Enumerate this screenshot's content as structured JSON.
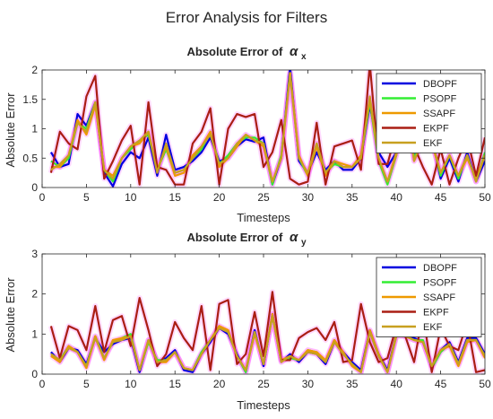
{
  "figure": {
    "suptitle": "Error Analysis for Filters"
  },
  "colors": {
    "DBOPF": "#0000e0",
    "PSOPF": "#33ee33",
    "SSAPF": "#ee9900",
    "EKPF": "#aa1e14",
    "EKF": "#c8a020",
    "highlight": "#ff33ff",
    "axis": "#262626"
  },
  "chart_data": [
    {
      "type": "line",
      "title": "Absolute Error of",
      "title_symbol": "α",
      "title_subscript": "x",
      "xlabel": "Timesteps",
      "ylabel": "Absolute Error",
      "xlim": [
        0,
        50
      ],
      "ylim": [
        0,
        2
      ],
      "xticks": [
        0,
        5,
        10,
        15,
        20,
        25,
        30,
        35,
        40,
        45,
        50
      ],
      "yticks": [
        0,
        0.5,
        1,
        1.5,
        2
      ],
      "ytick_labels": [
        "0",
        "0.5",
        "1",
        "1.5",
        "2"
      ],
      "xtick_labels": [
        "0",
        "5",
        "10",
        "15",
        "20",
        "25",
        "30",
        "35",
        "40",
        "45",
        "50"
      ],
      "grid": false,
      "legend": "top-right",
      "x": [
        1,
        2,
        3,
        4,
        5,
        6,
        7,
        8,
        9,
        10,
        11,
        12,
        13,
        14,
        15,
        16,
        17,
        18,
        19,
        20,
        21,
        22,
        23,
        24,
        25,
        26,
        27,
        28,
        29,
        30,
        31,
        32,
        33,
        34,
        35,
        36,
        37,
        38,
        39,
        40,
        41,
        42,
        43,
        44,
        45,
        46,
        47,
        48,
        49,
        50
      ],
      "series": [
        {
          "name": "DBOPF",
          "values": [
            0.6,
            0.35,
            0.4,
            1.25,
            1.05,
            1.45,
            0.25,
            0.02,
            0.4,
            0.6,
            0.5,
            0.85,
            0.2,
            0.9,
            0.3,
            0.35,
            0.45,
            0.6,
            0.85,
            0.45,
            0.5,
            0.7,
            0.82,
            0.78,
            0.85,
            0.05,
            0.5,
            2.05,
            0.45,
            0.25,
            0.6,
            0.3,
            0.45,
            0.3,
            0.3,
            0.5,
            1.4,
            0.6,
            0.35,
            0.6,
            1.6,
            0.5,
            0.9,
            0.85,
            0.15,
            0.5,
            0.1,
            0.6,
            0.1,
            0.45
          ]
        },
        {
          "name": "PSOPF",
          "values": [
            0.45,
            0.35,
            0.5,
            1.1,
            1.0,
            1.45,
            0.3,
            0.1,
            0.5,
            0.65,
            0.8,
            0.9,
            0.3,
            0.65,
            0.25,
            0.3,
            0.5,
            0.65,
            0.95,
            0.4,
            0.55,
            0.75,
            0.85,
            0.85,
            0.75,
            0.05,
            0.55,
            1.95,
            0.5,
            0.2,
            0.75,
            0.25,
            0.4,
            0.35,
            0.35,
            0.5,
            1.45,
            0.45,
            0.05,
            0.55,
            1.55,
            0.5,
            0.85,
            0.8,
            0.2,
            0.55,
            0.15,
            0.55,
            0.1,
            0.6
          ]
        },
        {
          "name": "SSAPF",
          "values": [
            0.35,
            0.35,
            0.55,
            1.15,
            0.9,
            1.4,
            0.3,
            0.2,
            0.5,
            0.7,
            0.75,
            0.95,
            0.3,
            0.7,
            0.2,
            0.25,
            0.55,
            0.7,
            0.95,
            0.35,
            0.5,
            0.7,
            0.9,
            0.8,
            0.7,
            0.1,
            0.5,
            1.95,
            0.55,
            0.2,
            0.7,
            0.2,
            0.45,
            0.4,
            0.35,
            0.55,
            1.5,
            0.5,
            0.1,
            0.6,
            1.5,
            0.45,
            0.8,
            0.75,
            0.25,
            0.55,
            0.2,
            0.5,
            0.15,
            0.55
          ]
        },
        {
          "name": "EKPF",
          "values": [
            0.25,
            0.95,
            0.75,
            0.65,
            1.55,
            1.9,
            0.15,
            0.45,
            0.8,
            1.05,
            0.05,
            1.45,
            0.35,
            0.3,
            0.05,
            0.05,
            0.75,
            0.95,
            1.35,
            0.05,
            1.0,
            1.25,
            1.2,
            1.25,
            0.35,
            0.6,
            1.15,
            0.15,
            0.05,
            0.1,
            1.1,
            0.05,
            0.7,
            0.75,
            0.8,
            0.3,
            2.1,
            0.4,
            0.4,
            0.95,
            0.95,
            0.7,
            0.35,
            0.05,
            0.65,
            0.05,
            0.5,
            0.85,
            0.2,
            0.85
          ]
        },
        {
          "name": "EKF",
          "values": [
            0.3,
            0.4,
            0.55,
            1.1,
            0.95,
            1.45,
            0.3,
            0.15,
            0.5,
            0.7,
            0.8,
            0.95,
            0.25,
            0.75,
            0.25,
            0.3,
            0.5,
            0.7,
            0.9,
            0.4,
            0.5,
            0.75,
            0.9,
            0.8,
            0.75,
            0.1,
            0.5,
            1.9,
            0.5,
            0.25,
            0.75,
            0.25,
            0.45,
            0.35,
            0.35,
            0.5,
            1.55,
            0.5,
            0.1,
            0.55,
            1.5,
            0.45,
            0.85,
            0.8,
            0.25,
            0.55,
            0.2,
            0.55,
            0.1,
            0.55
          ]
        }
      ]
    },
    {
      "type": "line",
      "title": "Absolute Error of",
      "title_symbol": "α",
      "title_subscript": "y",
      "xlabel": "Timesteps",
      "ylabel": "Absolute Error",
      "xlim": [
        0,
        50
      ],
      "ylim": [
        0,
        3
      ],
      "xticks": [
        0,
        5,
        10,
        15,
        20,
        25,
        30,
        35,
        40,
        45,
        50
      ],
      "yticks": [
        0,
        1,
        2,
        3
      ],
      "ytick_labels": [
        "0",
        "1",
        "2",
        "3"
      ],
      "xtick_labels": [
        "0",
        "5",
        "10",
        "15",
        "20",
        "25",
        "30",
        "35",
        "40",
        "45",
        "50"
      ],
      "grid": false,
      "legend": "top-right",
      "x": [
        1,
        2,
        3,
        4,
        5,
        6,
        7,
        8,
        9,
        10,
        11,
        12,
        13,
        14,
        15,
        16,
        17,
        18,
        19,
        20,
        21,
        22,
        23,
        24,
        25,
        26,
        27,
        28,
        29,
        30,
        31,
        32,
        33,
        34,
        35,
        36,
        37,
        38,
        39,
        40,
        41,
        42,
        43,
        44,
        45,
        46,
        47,
        48,
        49,
        50
      ],
      "series": [
        {
          "name": "DBOPF",
          "values": [
            0.55,
            0.3,
            0.65,
            0.6,
            0.25,
            0.9,
            0.55,
            0.75,
            0.85,
            0.9,
            0.05,
            0.85,
            0.3,
            0.4,
            0.6,
            0.1,
            0.05,
            0.5,
            0.8,
            1.15,
            1.0,
            0.5,
            0.05,
            1.1,
            0.2,
            1.5,
            0.3,
            0.5,
            0.3,
            0.55,
            0.5,
            0.25,
            0.8,
            0.55,
            0.3,
            0.1,
            1.1,
            0.5,
            0.1,
            1.0,
            1.0,
            0.9,
            0.8,
            0.2,
            0.6,
            0.8,
            0.3,
            0.9,
            0.9,
            0.5
          ]
        },
        {
          "name": "PSOPF",
          "values": [
            0.5,
            0.35,
            0.7,
            0.55,
            0.2,
            0.95,
            0.4,
            0.8,
            0.9,
            1.0,
            0.1,
            0.8,
            0.35,
            0.35,
            0.55,
            0.15,
            0.1,
            0.55,
            0.85,
            1.2,
            1.05,
            0.45,
            0.05,
            1.05,
            0.25,
            1.45,
            0.35,
            0.4,
            0.35,
            0.6,
            0.55,
            0.3,
            0.85,
            0.5,
            0.25,
            0.05,
            1.05,
            0.45,
            0.05,
            0.95,
            0.95,
            0.85,
            0.85,
            0.15,
            0.55,
            0.75,
            0.25,
            0.85,
            0.85,
            0.45
          ]
        },
        {
          "name": "SSAPF",
          "values": [
            0.45,
            0.3,
            0.7,
            0.55,
            0.15,
            0.95,
            0.35,
            0.85,
            0.9,
            0.95,
            0.1,
            0.85,
            0.3,
            0.3,
            0.55,
            0.15,
            0.1,
            0.5,
            0.85,
            1.2,
            1.1,
            0.45,
            0.1,
            1.0,
            0.25,
            1.5,
            0.35,
            0.45,
            0.35,
            0.6,
            0.55,
            0.35,
            0.85,
            0.55,
            0.2,
            0.05,
            1.1,
            0.5,
            0.05,
            1.0,
            0.95,
            0.85,
            0.8,
            0.2,
            0.6,
            0.7,
            0.2,
            0.8,
            0.85,
            0.4
          ]
        },
        {
          "name": "EKPF",
          "values": [
            1.2,
            0.4,
            1.2,
            1.1,
            0.6,
            1.7,
            0.55,
            1.35,
            1.45,
            0.7,
            1.9,
            1.1,
            0.2,
            0.5,
            1.3,
            0.9,
            0.6,
            1.7,
            0.1,
            1.75,
            1.85,
            0.25,
            0.5,
            1.55,
            0.45,
            2.05,
            0.35,
            0.35,
            0.9,
            1.05,
            1.15,
            0.85,
            1.3,
            0.3,
            0.35,
            1.75,
            0.8,
            0.3,
            0.4,
            1.2,
            0.95,
            0.3,
            1.5,
            0.05,
            1.15,
            0.7,
            0.6,
            1.3,
            0.05,
            0.1
          ]
        },
        {
          "name": "EKF",
          "values": [
            0.5,
            0.35,
            0.65,
            0.55,
            0.2,
            0.9,
            0.4,
            0.8,
            0.85,
            0.95,
            0.1,
            0.85,
            0.3,
            0.35,
            0.55,
            0.15,
            0.1,
            0.5,
            0.85,
            1.15,
            1.05,
            0.45,
            0.1,
            1.05,
            0.25,
            1.45,
            0.3,
            0.45,
            0.35,
            0.55,
            0.5,
            0.3,
            0.8,
            0.5,
            0.25,
            0.05,
            1.05,
            0.45,
            0.05,
            0.95,
            0.95,
            0.85,
            0.8,
            0.2,
            0.6,
            0.75,
            0.25,
            0.85,
            0.85,
            0.45
          ]
        }
      ]
    }
  ]
}
